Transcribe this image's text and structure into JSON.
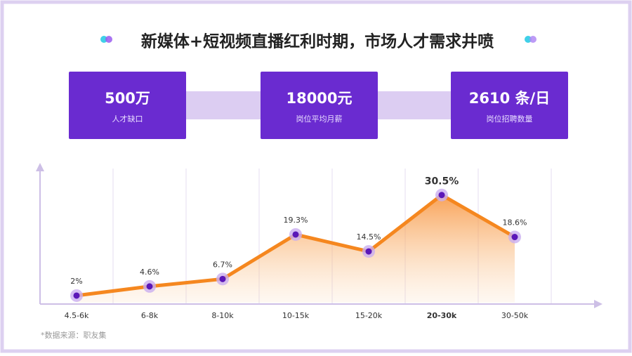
{
  "title": "新媒体+短视频直播红利时期，市场人才需求井喷",
  "stats": [
    {
      "value": "500万",
      "label": "人才缺口"
    },
    {
      "value": "18000元",
      "label": "岗位平均月薪"
    },
    {
      "value": "2610 条/日",
      "label": "岗位招聘数量"
    }
  ],
  "chart_data": {
    "type": "area-line",
    "categories": [
      "4.5-6k",
      "6-8k",
      "8-10k",
      "10-15k",
      "15-20k",
      "20-30k",
      "30-50k"
    ],
    "values": [
      2,
      4.6,
      6.7,
      19.3,
      14.5,
      30.5,
      18.6
    ],
    "value_labels": [
      "2%",
      "4.6%",
      "6.7%",
      "19.3%",
      "14.5%",
      "30.5%",
      "18.6%"
    ],
    "ylim": [
      0,
      38
    ],
    "color": "#f5871f",
    "point_color": "#5b17b8"
  },
  "source": "*数据来源：职友集"
}
